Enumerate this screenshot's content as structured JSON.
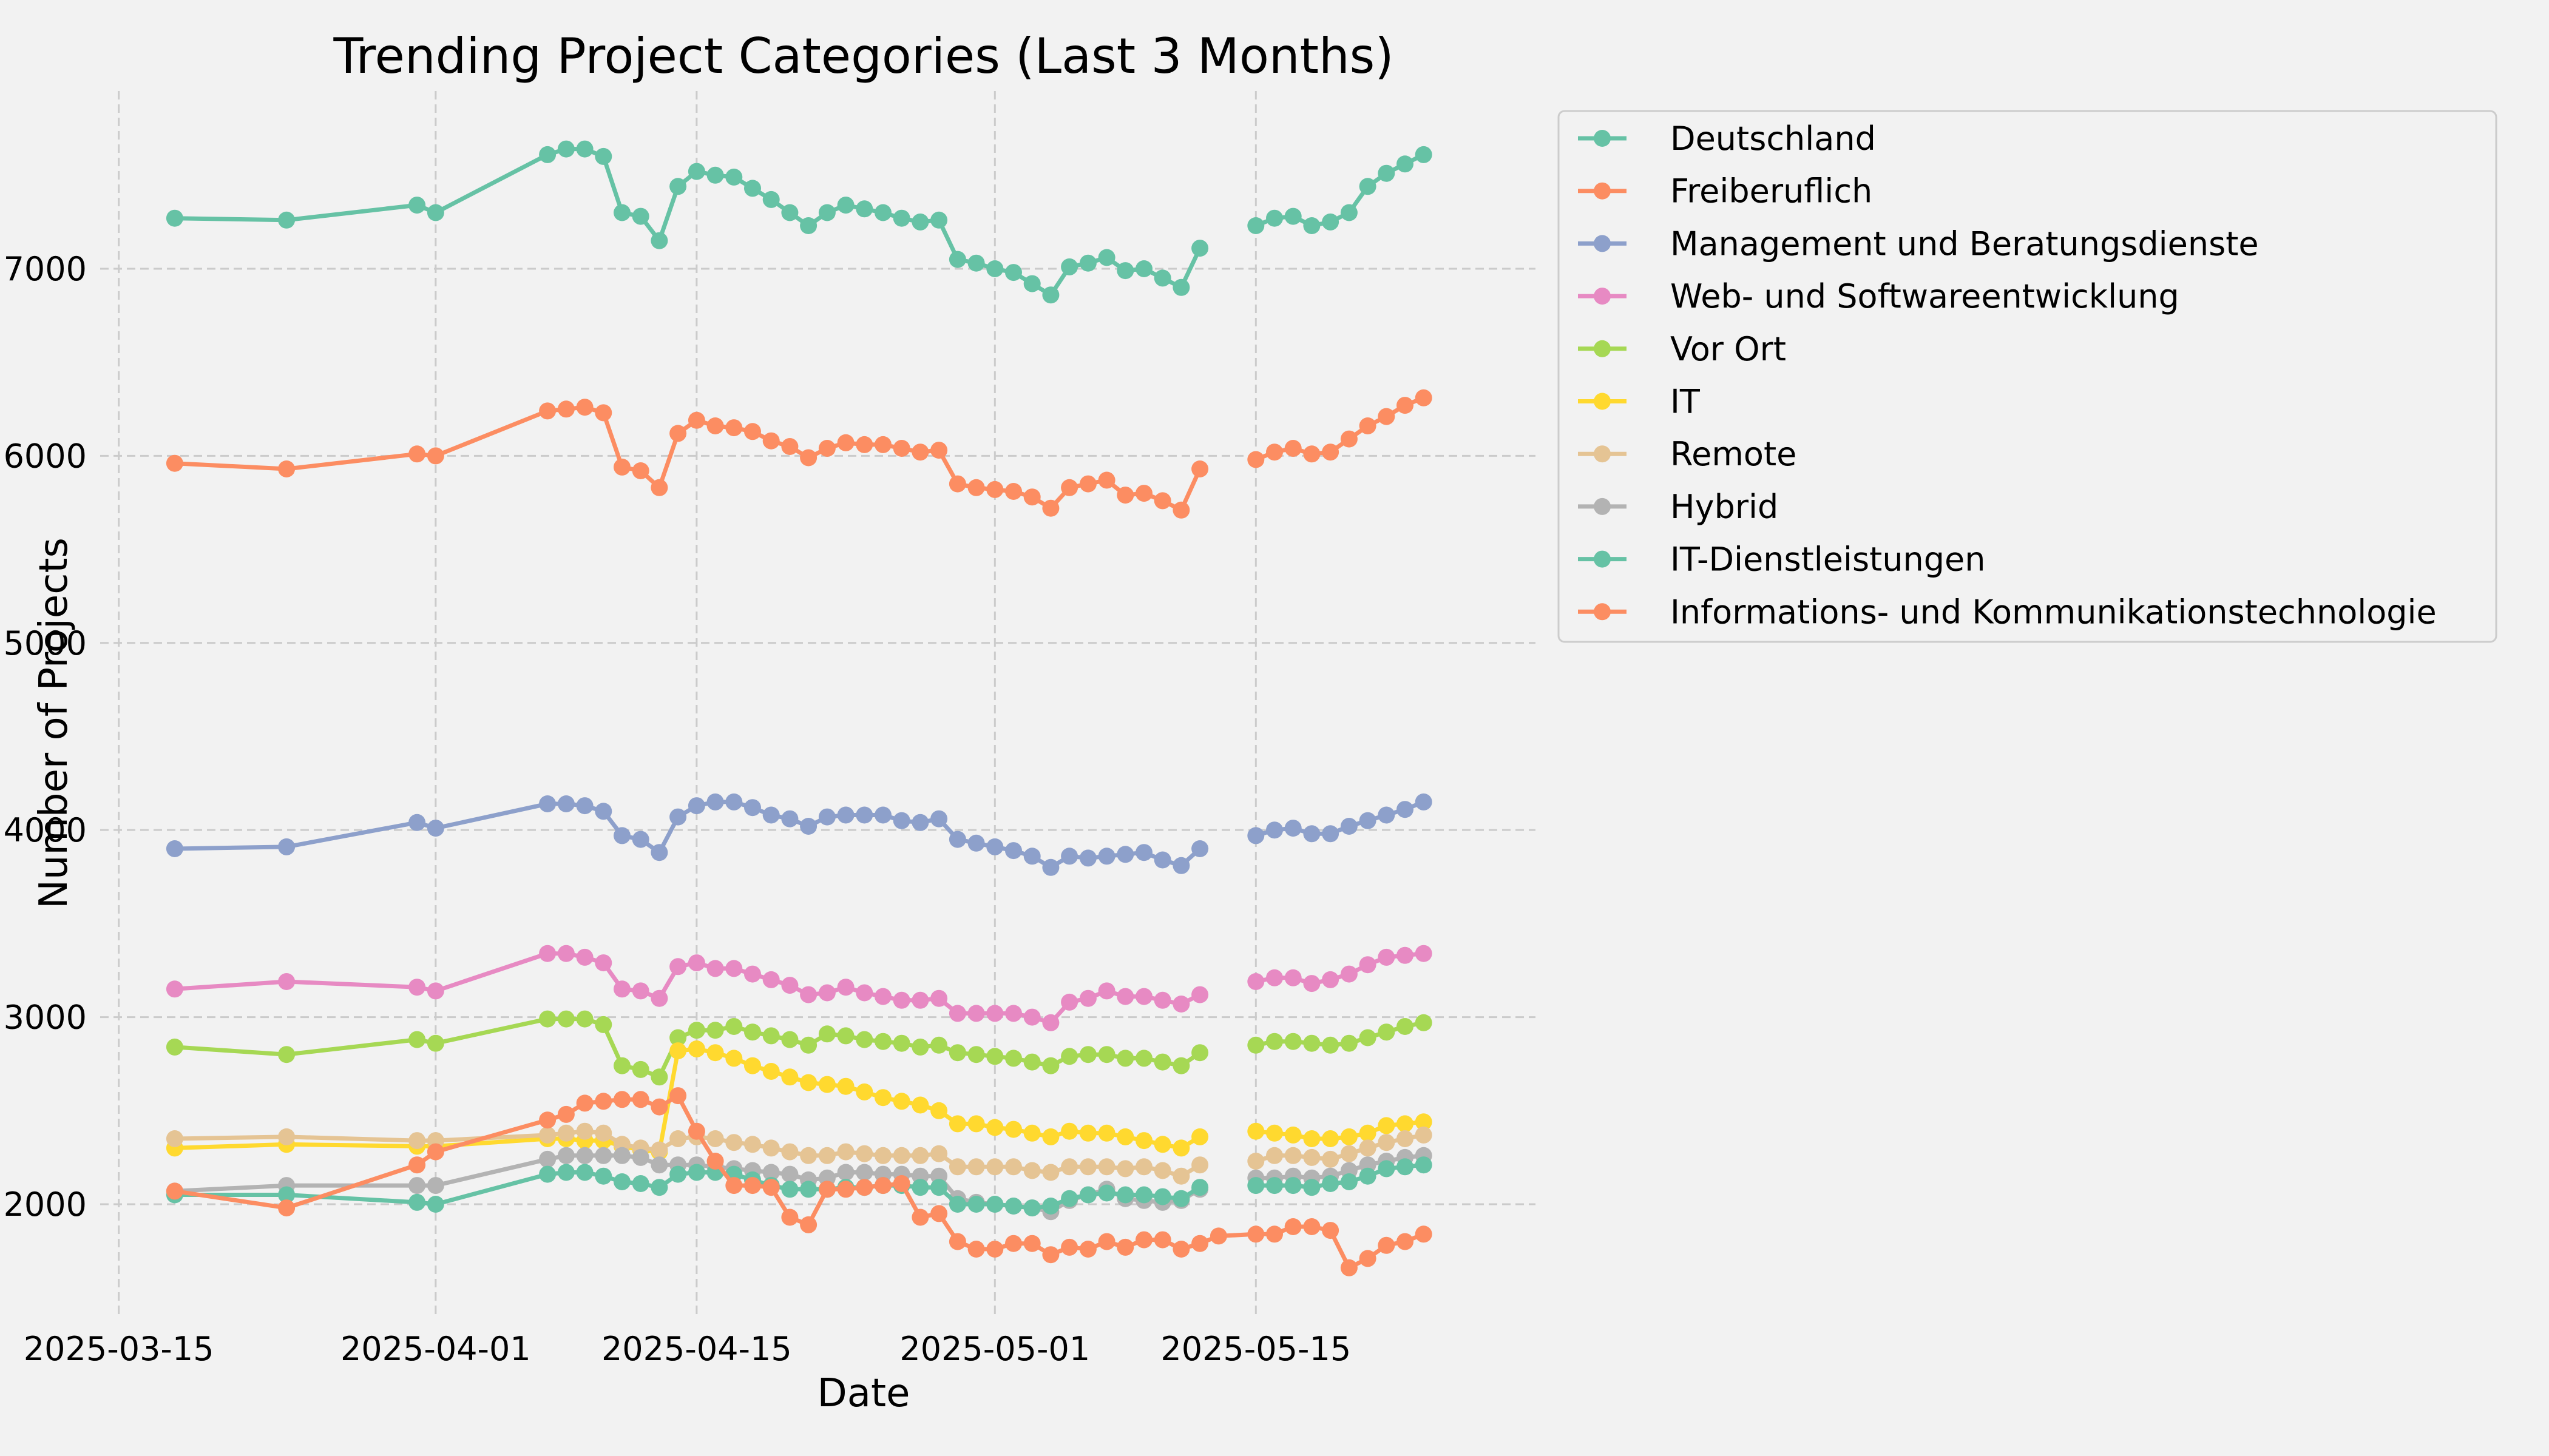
{
  "chart_data": {
    "type": "line",
    "title": "Trending Project Categories (Last 3 Months)",
    "xlabel": "Date",
    "ylabel": "Number of Projects",
    "x_axis_type": "date",
    "xlim": [
      "2025-03-14",
      "2025-05-30"
    ],
    "ylim": [
      1400,
      7950
    ],
    "x_ticks": [
      "2025-03-15",
      "2025-04-01",
      "2025-04-15",
      "2025-05-01",
      "2025-05-15"
    ],
    "y_ticks": [
      2000,
      3000,
      4000,
      5000,
      6000,
      7000
    ],
    "grid": true,
    "legend": "outside-top-right",
    "x": [
      "2025-03-18",
      "2025-03-24",
      "2025-03-31",
      "2025-04-01",
      "2025-04-07",
      "2025-04-08",
      "2025-04-09",
      "2025-04-10",
      "2025-04-11",
      "2025-04-12",
      "2025-04-13",
      "2025-04-14",
      "2025-04-15",
      "2025-04-16",
      "2025-04-17",
      "2025-04-18",
      "2025-04-19",
      "2025-04-20",
      "2025-04-21",
      "2025-04-22",
      "2025-04-23",
      "2025-04-24",
      "2025-04-25",
      "2025-04-26",
      "2025-04-27",
      "2025-04-28",
      "2025-04-29",
      "2025-04-30",
      "2025-05-01",
      "2025-05-02",
      "2025-05-03",
      "2025-05-04",
      "2025-05-05",
      "2025-05-06",
      "2025-05-07",
      "2025-05-08",
      "2025-05-09",
      "2025-05-10",
      "2025-05-11",
      "2025-05-12",
      "2025-05-13",
      "2025-05-15",
      "2025-05-16",
      "2025-05-17",
      "2025-05-18",
      "2025-05-19",
      "2025-05-20",
      "2025-05-21",
      "2025-05-22",
      "2025-05-23",
      "2025-05-24",
      "2025-05-25"
    ],
    "series": [
      {
        "name": "Deutschland",
        "color": "#66c2a5",
        "values": [
          7270,
          7260,
          7340,
          7300,
          7610,
          7640,
          7640,
          7600,
          7300,
          7280,
          7150,
          7440,
          7520,
          7500,
          7490,
          7430,
          7370,
          7300,
          7230,
          7300,
          7340,
          7320,
          7300,
          7270,
          7250,
          7260,
          7050,
          7030,
          7000,
          6980,
          6920,
          6860,
          7010,
          7030,
          7060,
          6990,
          7000,
          6950,
          6900,
          7110,
          null,
          7230,
          7270,
          7280,
          7230,
          7250,
          7300,
          7440,
          7510,
          7560,
          7610,
          null
        ]
      },
      {
        "name": "Freiberuflich",
        "color": "#fc8d62",
        "values": [
          5960,
          5930,
          6010,
          6000,
          6240,
          6250,
          6260,
          6230,
          5940,
          5920,
          5830,
          6120,
          6190,
          6160,
          6150,
          6130,
          6080,
          6050,
          5990,
          6040,
          6070,
          6060,
          6060,
          6040,
          6020,
          6030,
          5850,
          5830,
          5820,
          5810,
          5780,
          5720,
          5830,
          5850,
          5870,
          5790,
          5800,
          5760,
          5710,
          5930,
          null,
          5980,
          6020,
          6040,
          6010,
          6020,
          6090,
          6160,
          6210,
          6270,
          6310,
          null
        ]
      },
      {
        "name": "Management und Beratungsdienste",
        "color": "#8da0cb",
        "values": [
          3900,
          3910,
          4040,
          4010,
          4140,
          4140,
          4130,
          4100,
          3970,
          3950,
          3880,
          4070,
          4130,
          4150,
          4150,
          4120,
          4080,
          4060,
          4020,
          4070,
          4080,
          4080,
          4080,
          4050,
          4040,
          4060,
          3950,
          3930,
          3910,
          3890,
          3860,
          3800,
          3860,
          3850,
          3860,
          3870,
          3880,
          3840,
          3810,
          3900,
          null,
          3970,
          4000,
          4010,
          3980,
          3980,
          4020,
          4050,
          4080,
          4110,
          4150,
          null
        ]
      },
      {
        "name": "Web- und Softwareentwicklung",
        "color": "#e78ac3",
        "values": [
          3150,
          3190,
          3160,
          3140,
          3340,
          3340,
          3320,
          3290,
          3150,
          3140,
          3100,
          3270,
          3290,
          3260,
          3260,
          3230,
          3200,
          3170,
          3120,
          3130,
          3160,
          3130,
          3110,
          3090,
          3090,
          3100,
          3020,
          3020,
          3020,
          3020,
          3000,
          2970,
          3080,
          3100,
          3140,
          3110,
          3110,
          3090,
          3070,
          3120,
          null,
          3190,
          3210,
          3210,
          3180,
          3200,
          3230,
          3280,
          3320,
          3330,
          3340,
          null
        ]
      },
      {
        "name": "Vor Ort",
        "color": "#a6d854",
        "values": [
          2840,
          2800,
          2880,
          2860,
          2990,
          2990,
          2990,
          2960,
          2740,
          2720,
          2680,
          2890,
          2930,
          2930,
          2950,
          2920,
          2900,
          2880,
          2850,
          2910,
          2900,
          2880,
          2870,
          2860,
          2840,
          2850,
          2810,
          2800,
          2790,
          2780,
          2760,
          2740,
          2790,
          2800,
          2800,
          2780,
          2780,
          2760,
          2740,
          2810,
          null,
          2850,
          2870,
          2870,
          2860,
          2850,
          2860,
          2890,
          2920,
          2950,
          2970,
          null
        ]
      },
      {
        "name": "IT",
        "color": "#ffd92f",
        "values": [
          2300,
          2320,
          2310,
          2310,
          2350,
          2350,
          2340,
          2340,
          2310,
          2290,
          2280,
          2820,
          2830,
          2810,
          2780,
          2740,
          2710,
          2680,
          2650,
          2640,
          2630,
          2600,
          2570,
          2550,
          2530,
          2500,
          2430,
          2430,
          2410,
          2400,
          2380,
          2360,
          2390,
          2380,
          2380,
          2360,
          2340,
          2320,
          2300,
          2360,
          null,
          2390,
          2380,
          2370,
          2350,
          2350,
          2360,
          2380,
          2420,
          2430,
          2440,
          null
        ]
      },
      {
        "name": "Remote",
        "color": "#e5c494",
        "values": [
          2350,
          2360,
          2340,
          2340,
          2370,
          2380,
          2390,
          2380,
          2320,
          2300,
          2290,
          2350,
          2360,
          2350,
          2330,
          2320,
          2300,
          2280,
          2260,
          2260,
          2280,
          2270,
          2260,
          2260,
          2260,
          2270,
          2200,
          2200,
          2200,
          2200,
          2180,
          2170,
          2200,
          2200,
          2200,
          2190,
          2200,
          2180,
          2150,
          2210,
          null,
          2230,
          2260,
          2260,
          2250,
          2240,
          2270,
          2300,
          2330,
          2350,
          2370,
          null
        ]
      },
      {
        "name": "Hybrid",
        "color": "#b3b3b3",
        "values": [
          2070,
          2100,
          2100,
          2100,
          2240,
          2260,
          2260,
          2260,
          2260,
          2250,
          2210,
          2210,
          2210,
          2200,
          2190,
          2180,
          2170,
          2160,
          2130,
          2140,
          2170,
          2170,
          2160,
          2160,
          2150,
          2150,
          2030,
          2010,
          2000,
          1990,
          1980,
          1960,
          2020,
          2050,
          2080,
          2030,
          2020,
          2010,
          2020,
          2080,
          null,
          2140,
          2140,
          2150,
          2140,
          2150,
          2180,
          2210,
          2230,
          2250,
          2260,
          null
        ]
      },
      {
        "name": "IT-Dienstleistungen",
        "color": "#66c2a5",
        "values": [
          2050,
          2050,
          2010,
          2000,
          2160,
          2170,
          2170,
          2150,
          2120,
          2110,
          2090,
          2160,
          2170,
          2170,
          2160,
          2130,
          2100,
          2080,
          2080,
          2080,
          2090,
          2090,
          2100,
          2100,
          2090,
          2090,
          2000,
          2000,
          2000,
          1990,
          1980,
          1990,
          2030,
          2050,
          2060,
          2050,
          2050,
          2040,
          2030,
          2090,
          null,
          2100,
          2100,
          2100,
          2090,
          2110,
          2120,
          2150,
          2190,
          2200,
          2210,
          null
        ]
      },
      {
        "name": "Informations- und Kommunikationstechnologie",
        "color": "#fc8d62",
        "values": [
          2070,
          1980,
          2210,
          2280,
          2450,
          2480,
          2540,
          2550,
          2560,
          2560,
          2520,
          2580,
          2390,
          2230,
          2100,
          2100,
          2090,
          1930,
          1890,
          2080,
          2080,
          2090,
          2100,
          2110,
          1930,
          1950,
          1800,
          1760,
          1760,
          1790,
          1790,
          1730,
          1770,
          1760,
          1800,
          1770,
          1810,
          1810,
          1760,
          1790,
          1830,
          1840,
          1840,
          1880,
          1880,
          1860,
          1660,
          1710,
          1780,
          1800,
          1840,
          null
        ]
      }
    ]
  }
}
